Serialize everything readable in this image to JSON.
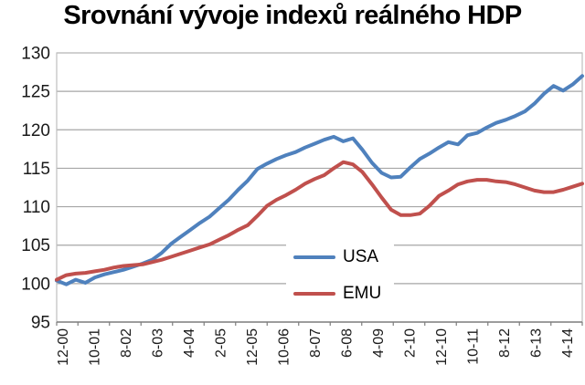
{
  "title": "Srovnání vývoje indexů reálného HDP",
  "legend": {
    "items": [
      "USA",
      "EMU"
    ]
  },
  "colors": {
    "usa_line": "#4F81BD",
    "emu_line": "#C0504D",
    "gridline": "#a6a6a6",
    "plot_border": "#bfbfbf",
    "axis_line": "#7f7f7f",
    "tick_text": "#1a1a1a"
  },
  "chart_data": {
    "type": "line",
    "title": "Srovnání vývoje indexů reálného HDP",
    "xlabel": "",
    "ylabel": "",
    "ylim": [
      95,
      130
    ],
    "y_ticks": [
      95,
      100,
      105,
      110,
      115,
      120,
      125,
      130
    ],
    "grid": true,
    "legend_position": "inside-lower-center",
    "x_labels": [
      "12-00",
      "10-01",
      "8-02",
      "6-03",
      "4-04",
      "2-05",
      "12-05",
      "10-06",
      "8-07",
      "6-08",
      "4-09",
      "2-10",
      "12-10",
      "10-11",
      "8-12",
      "6-13",
      "4-14"
    ],
    "x_note": "quarterly points, month-year labels every 10 months",
    "series": [
      {
        "name": "USA",
        "color": "#4F81BD",
        "values": [
          100.4,
          99.9,
          100.5,
          100.1,
          100.8,
          101.2,
          101.5,
          101.8,
          102.2,
          102.6,
          103.1,
          104.0,
          105.2,
          106.1,
          107.0,
          107.9,
          108.7,
          109.8,
          110.9,
          112.2,
          113.4,
          114.9,
          115.6,
          116.2,
          116.7,
          117.1,
          117.7,
          118.2,
          118.7,
          119.1,
          118.5,
          118.9,
          117.4,
          115.7,
          114.4,
          113.8,
          113.9,
          115.1,
          116.2,
          116.9,
          117.7,
          118.4,
          118.1,
          119.3,
          119.6,
          120.3,
          120.9,
          121.3,
          121.8,
          122.4,
          123.4,
          124.7,
          125.7,
          125.1,
          125.9,
          127.0
        ]
      },
      {
        "name": "EMU",
        "color": "#C0504D",
        "values": [
          100.5,
          101.1,
          101.3,
          101.4,
          101.6,
          101.8,
          102.1,
          102.3,
          102.4,
          102.5,
          102.8,
          103.1,
          103.5,
          103.9,
          104.3,
          104.7,
          105.1,
          105.7,
          106.3,
          107.0,
          107.6,
          108.8,
          110.1,
          110.9,
          111.5,
          112.2,
          113.0,
          113.6,
          114.1,
          115.0,
          115.8,
          115.5,
          114.5,
          112.9,
          111.2,
          109.6,
          108.9,
          108.9,
          109.1,
          110.1,
          111.4,
          112.1,
          112.9,
          113.3,
          113.5,
          113.5,
          113.3,
          113.2,
          112.9,
          112.5,
          112.1,
          111.9,
          111.9,
          112.2,
          112.6,
          113.0
        ]
      }
    ]
  }
}
